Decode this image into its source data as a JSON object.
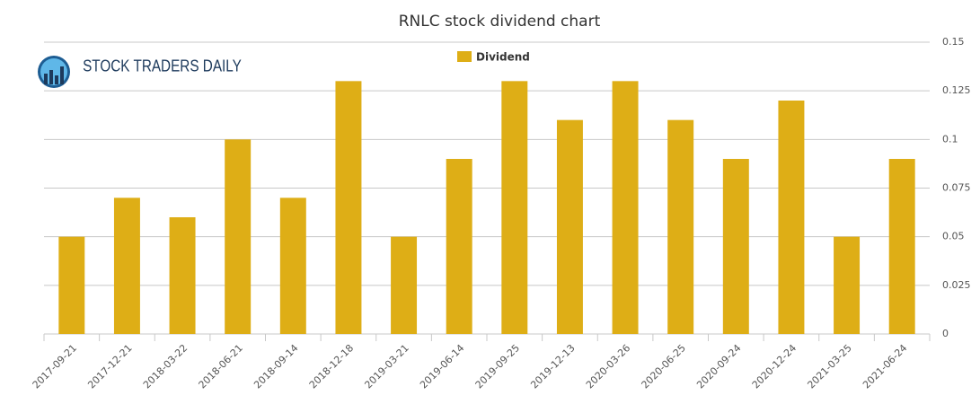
{
  "logo": {
    "text": "STOCK TRADERS DAILY"
  },
  "chart_data": {
    "type": "bar",
    "title": "RNLC stock dividend chart",
    "categories": [
      "2017-09-21",
      "2017-12-21",
      "2018-03-22",
      "2018-06-21",
      "2018-09-14",
      "2018-12-18",
      "2019-03-21",
      "2019-06-14",
      "2019-09-25",
      "2019-12-13",
      "2020-03-26",
      "2020-06-25",
      "2020-09-24",
      "2020-12-24",
      "2021-03-25",
      "2021-06-24"
    ],
    "series": [
      {
        "name": "Dividend",
        "color": "#deae16",
        "values": [
          0.05,
          0.07,
          0.06,
          0.1,
          0.07,
          0.13,
          0.05,
          0.09,
          0.13,
          0.11,
          0.13,
          0.11,
          0.09,
          0.12,
          0.05,
          0.09
        ]
      }
    ],
    "ylim": [
      0,
      0.15
    ],
    "yticks": [
      0,
      0.025,
      0.05,
      0.075,
      0.1,
      0.125,
      0.15
    ],
    "grid": true,
    "legend": "top",
    "y_axis_side": "right"
  }
}
